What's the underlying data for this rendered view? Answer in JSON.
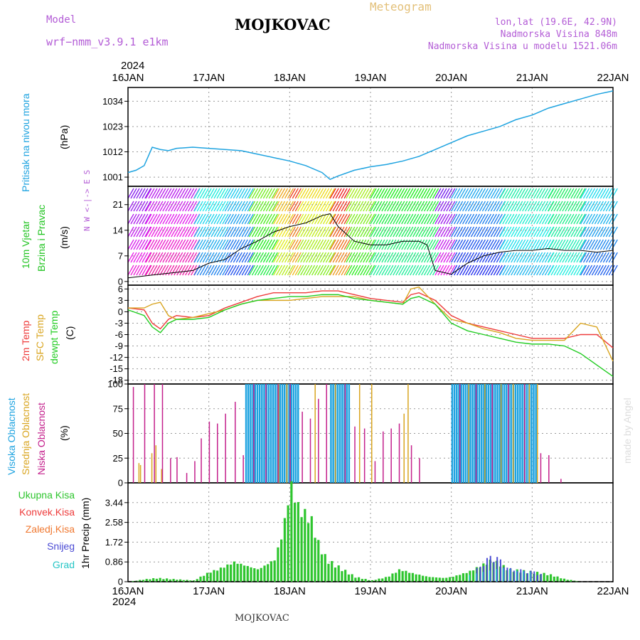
{
  "header": {
    "model_label": "Model",
    "model_name": "wrf−nmm_v3.9.1  e1km",
    "station": "MOJKOVAC",
    "product": "Meteogram",
    "lonlat": "lon,lat (19.6E, 42.9N)",
    "elevation": "Nadmorska Visina 848m",
    "model_elevation": "Nadmorska Visina u modelu 1521.06m",
    "year": "2024",
    "footer_station": "MOJKOVAC",
    "credit": "made by Angel"
  },
  "colors": {
    "model": "#b35cd6",
    "product": "#e3c079",
    "pressure": "#1ea3e0",
    "wind_label": "#22c422",
    "temp2m": "#ee3b3b",
    "sfc": "#d9a520",
    "dewpt": "#22cc22",
    "high_cloud": "#1ea3e0",
    "mid_cloud": "#d9a520",
    "low_cloud": "#c4208c",
    "total_precip": "#2ec52e",
    "conv_precip": "#ee3b3b",
    "frz_precip": "#f07830",
    "snow": "#4a4ad4",
    "graupel": "#26c6c6"
  },
  "chart_data": [
    {
      "type": "line",
      "panel": "pressure",
      "ylabel_name": "Pritisak na nivou mora",
      "ylabel_unit": "(hPa)",
      "yticks": [
        "1001",
        "1012",
        "1023",
        "1034"
      ],
      "ylim": [
        997,
        1040
      ],
      "x_days": [
        0,
        0.1,
        0.2,
        0.25,
        0.3,
        0.4,
        0.5,
        0.6,
        0.8,
        1,
        1.2,
        1.4,
        1.6,
        1.8,
        2,
        2.2,
        2.4,
        2.5,
        2.6,
        2.8,
        3,
        3.2,
        3.4,
        3.6,
        3.8,
        4,
        4.2,
        4.4,
        4.6,
        4.8,
        5,
        5.2,
        5.4,
        5.6,
        5.8,
        6
      ],
      "values": [
        1003,
        1004,
        1006,
        1010,
        1014,
        1013,
        1012.5,
        1013.5,
        1014,
        1013.5,
        1013,
        1012.5,
        1011,
        1009.5,
        1008,
        1006,
        1003,
        1000,
        1001.5,
        1004,
        1005.5,
        1006.5,
        1008,
        1010,
        1013,
        1016,
        1019,
        1021,
        1023,
        1026,
        1028,
        1031,
        1033,
        1035,
        1037,
        1038.5
      ]
    },
    {
      "type": "line",
      "panel": "wind",
      "ylabel_name1": "10m Vjetar",
      "ylabel_name2": "Brzina i Pravac",
      "ylabel_unit": "(m/s)",
      "compass": "N  W <-|-> E  S",
      "yticks": [
        "0",
        "7",
        "14",
        "21"
      ],
      "ylim": [
        -1,
        26
      ],
      "x_days": [
        0,
        0.2,
        0.4,
        0.6,
        0.8,
        1,
        1.2,
        1.4,
        1.6,
        1.8,
        2,
        2.2,
        2.4,
        2.5,
        2.6,
        2.8,
        3,
        3.2,
        3.4,
        3.6,
        3.7,
        3.8,
        4,
        4.2,
        4.4,
        4.6,
        4.8,
        5,
        5.2,
        5.4,
        5.6,
        5.8,
        6
      ],
      "values": [
        1,
        1.5,
        2,
        2.5,
        3,
        5,
        6,
        9,
        11,
        13.5,
        15,
        16,
        18,
        18.5,
        15,
        11,
        10,
        10,
        11,
        11,
        10,
        3,
        2,
        5,
        7,
        8,
        8.5,
        8.5,
        9,
        8.5,
        8.5,
        8,
        8.5
      ]
    },
    {
      "type": "line",
      "panel": "temperature",
      "series_names": [
        "2m Temp",
        "SFC Temp",
        "dewpt Temp"
      ],
      "ylabel_unit": "(C)",
      "yticks": [
        "-18",
        "-15",
        "-12",
        "-9",
        "-6",
        "-3",
        "0",
        "3",
        "6"
      ],
      "ylim": [
        -19,
        7
      ],
      "x_days": [
        0,
        0.2,
        0.3,
        0.4,
        0.5,
        0.6,
        0.8,
        1,
        1.2,
        1.4,
        1.6,
        1.8,
        2,
        2.2,
        2.4,
        2.6,
        2.8,
        3,
        3.2,
        3.4,
        3.5,
        3.6,
        3.8,
        4,
        4.2,
        4.4,
        4.6,
        4.8,
        5,
        5.2,
        5.4,
        5.6,
        5.8,
        6
      ],
      "series": [
        {
          "name": "2m Temp",
          "values": [
            1,
            0.5,
            -3,
            -4.5,
            -2,
            -1,
            -1.5,
            -1,
            1,
            2.5,
            4,
            5,
            5,
            5,
            5.5,
            5.5,
            4.5,
            3.5,
            3,
            2.5,
            4.5,
            5,
            3,
            -1,
            -3,
            -4,
            -5,
            -6,
            -7,
            -7,
            -7,
            -6,
            -6,
            -9.5
          ]
        },
        {
          "name": "SFC Temp",
          "values": [
            1,
            1,
            2,
            2.5,
            -1,
            -2,
            -1.5,
            -0.5,
            0.5,
            2,
            3,
            3,
            3,
            3.5,
            4,
            4,
            4,
            3,
            2.5,
            2,
            6,
            6.5,
            2,
            -2,
            -3,
            -4.5,
            -5.5,
            -7,
            -7.5,
            -7.5,
            -7.5,
            -3,
            -4,
            -13
          ]
        },
        {
          "name": "dewpt Temp",
          "values": [
            0.5,
            -1,
            -4,
            -5.5,
            -3,
            -2,
            -2,
            -1.5,
            0.5,
            2,
            3,
            3.5,
            4,
            4,
            4.5,
            4.5,
            3.5,
            3,
            2.5,
            2,
            3.5,
            4,
            2,
            -3,
            -5,
            -6,
            -7,
            -8,
            -8.5,
            -8.5,
            -9,
            -11,
            -14,
            -17
          ]
        }
      ]
    },
    {
      "type": "bar",
      "panel": "cloud",
      "series_names": [
        "Visoka Oblacnost",
        "Srednja Oblacnost",
        "Niska Oblacnost"
      ],
      "ylabel_unit": "(%)",
      "yticks": [
        "0",
        "25",
        "50",
        "75",
        "100"
      ],
      "ylim": [
        0,
        100
      ],
      "high_blocks": [
        [
          1.45,
          2.1
        ],
        [
          2.5,
          2.75
        ],
        [
          4.0,
          5.05
        ]
      ],
      "low_bars": [
        [
          0.06,
          97
        ],
        [
          0.2,
          100
        ],
        [
          0.32,
          100
        ],
        [
          0.42,
          100
        ],
        [
          0.52,
          25
        ],
        [
          0.6,
          26
        ],
        [
          0.72,
          10
        ],
        [
          0.82,
          22
        ],
        [
          0.9,
          45
        ],
        [
          1.0,
          62
        ],
        [
          1.1,
          60
        ],
        [
          1.2,
          70
        ],
        [
          1.32,
          82
        ],
        [
          1.42,
          28
        ],
        [
          1.55,
          100
        ],
        [
          1.7,
          100
        ],
        [
          1.85,
          100
        ],
        [
          2.0,
          100
        ],
        [
          2.15,
          72
        ],
        [
          2.25,
          65
        ],
        [
          2.35,
          85
        ],
        [
          2.45,
          100
        ],
        [
          2.68,
          100
        ],
        [
          2.8,
          57
        ],
        [
          2.92,
          55
        ],
        [
          3.05,
          22
        ],
        [
          3.15,
          52
        ],
        [
          3.25,
          55
        ],
        [
          3.35,
          60
        ],
        [
          3.5,
          38
        ],
        [
          3.6,
          25
        ],
        [
          4.1,
          100
        ],
        [
          4.3,
          100
        ],
        [
          4.5,
          100
        ],
        [
          4.7,
          100
        ],
        [
          4.9,
          100
        ],
        [
          5.1,
          30
        ],
        [
          5.2,
          28
        ],
        [
          5.35,
          4
        ]
      ],
      "mid_bars": [
        [
          0.12,
          20
        ],
        [
          0.14,
          18
        ],
        [
          0.28,
          30
        ],
        [
          0.33,
          38
        ],
        [
          0.4,
          14
        ],
        [
          1.85,
          100
        ],
        [
          1.95,
          100
        ],
        [
          2.3,
          100
        ],
        [
          2.55,
          100
        ],
        [
          2.85,
          100
        ],
        [
          3.0,
          100
        ],
        [
          3.4,
          70
        ],
        [
          3.45,
          100
        ],
        [
          4.2,
          100
        ],
        [
          4.4,
          100
        ],
        [
          4.6,
          100
        ],
        [
          4.75,
          100
        ],
        [
          4.95,
          100
        ],
        [
          5.05,
          100
        ]
      ]
    },
    {
      "type": "bar",
      "panel": "precip",
      "series_names": [
        "Ukupna Kisa",
        "Konvek.Kisa",
        "Zaledj.Kisa",
        "Snijeg",
        "Grad"
      ],
      "ylabel_unit": "1hr Precip (mm)",
      "yticks": [
        "0",
        "0.86",
        "1.72",
        "2.58",
        "3.44"
      ],
      "ylim": [
        0,
        4.3
      ],
      "days": [
        "16JAN",
        "17JAN",
        "18JAN",
        "19JAN",
        "20JAN",
        "21JAN",
        "22JAN"
      ],
      "total_profile": [
        [
          0,
          0
        ],
        [
          0.2,
          0.1
        ],
        [
          0.35,
          0.15
        ],
        [
          0.8,
          0.05
        ],
        [
          1.0,
          0.4
        ],
        [
          1.1,
          0.5
        ],
        [
          1.3,
          0.8
        ],
        [
          1.5,
          0.6
        ],
        [
          1.6,
          0.5
        ],
        [
          1.8,
          0.9
        ],
        [
          1.9,
          2.0
        ],
        [
          2.0,
          4.0
        ],
        [
          2.1,
          3.0
        ],
        [
          2.25,
          2.6
        ],
        [
          2.35,
          1.5
        ],
        [
          2.45,
          0.9
        ],
        [
          2.6,
          0.6
        ],
        [
          2.8,
          0.2
        ],
        [
          3.0,
          0.05
        ],
        [
          3.2,
          0.2
        ],
        [
          3.35,
          0.5
        ],
        [
          3.5,
          0.35
        ],
        [
          3.7,
          0.2
        ],
        [
          3.9,
          0.15
        ],
        [
          4.0,
          0.2
        ],
        [
          4.2,
          0.4
        ],
        [
          4.5,
          0.9
        ],
        [
          4.7,
          0.5
        ],
        [
          5.0,
          0.4
        ],
        [
          5.2,
          0.3
        ],
        [
          5.4,
          0.1
        ],
        [
          5.6,
          0
        ],
        [
          6,
          0
        ]
      ],
      "snow_profile": [
        [
          4.3,
          0.5
        ],
        [
          4.5,
          1.1
        ],
        [
          4.7,
          0.5
        ],
        [
          5.0,
          0.4
        ],
        [
          5.1,
          0.3
        ]
      ],
      "graupel_profile": [
        [
          4.2,
          0.3
        ],
        [
          4.6,
          0.6
        ],
        [
          5.0,
          0.4
        ]
      ]
    }
  ]
}
